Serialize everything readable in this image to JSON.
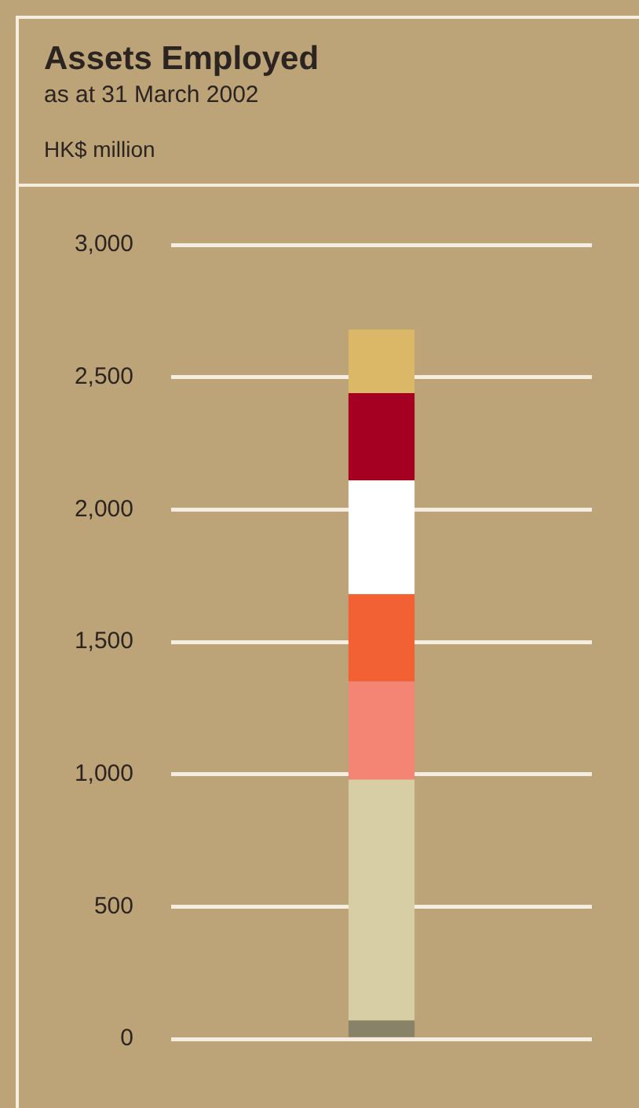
{
  "chart_data": {
    "type": "bar",
    "title": "Assets Employed",
    "subtitle": "as at 31 March 2002",
    "ylabel": "HK$ million",
    "stacked": true,
    "categories": [
      null
    ],
    "series": [
      {
        "color": "#888268",
        "values": [
          70
        ]
      },
      {
        "color": "#d8cea6",
        "values": [
          910
        ]
      },
      {
        "color": "#f48474",
        "values": [
          370
        ]
      },
      {
        "color": "#f26133",
        "values": [
          330
        ]
      },
      {
        "color": "#ffffff",
        "values": [
          430
        ]
      },
      {
        "color": "#a50021",
        "values": [
          330
        ]
      },
      {
        "color": "#dbb868",
        "values": [
          240
        ]
      }
    ],
    "ylim": [
      0,
      3000
    ],
    "yticks": [
      0,
      500,
      {
        "value": 1000,
        "label": "1,000"
      },
      {
        "value": 1500,
        "label": "1,500"
      },
      {
        "value": 2000,
        "label": "2,000"
      },
      {
        "value": 2500,
        "label": "2,500"
      },
      {
        "value": 3000,
        "label": "3,000"
      }
    ],
    "grid": "y",
    "legend": false
  }
}
